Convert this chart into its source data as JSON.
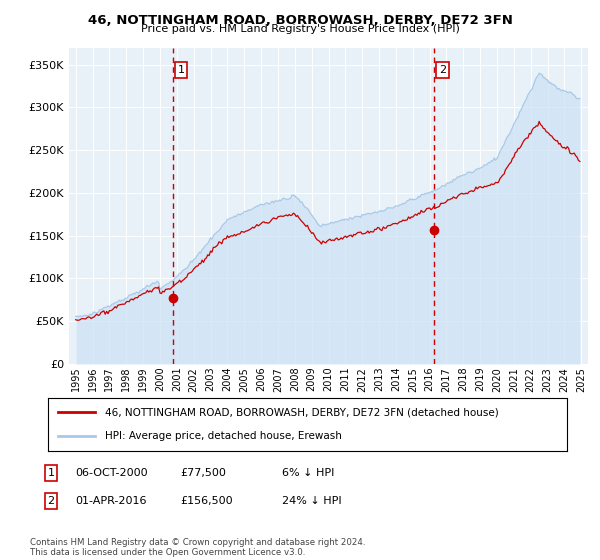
{
  "title": "46, NOTTINGHAM ROAD, BORROWASH, DERBY, DE72 3FN",
  "subtitle": "Price paid vs. HM Land Registry's House Price Index (HPI)",
  "ylim": [
    0,
    370000
  ],
  "yticks": [
    0,
    50000,
    100000,
    150000,
    200000,
    250000,
    300000,
    350000
  ],
  "hpi_color": "#a8c8e8",
  "hpi_fill_color": "#d0e4f5",
  "price_color": "#cc0000",
  "vline_color": "#cc0000",
  "sale1_price": 77500,
  "sale2_price": 156500,
  "legend_line1": "46, NOTTINGHAM ROAD, BORROWASH, DERBY, DE72 3FN (detached house)",
  "legend_line2": "HPI: Average price, detached house, Erewash",
  "sale1_date": "06-OCT-2000",
  "sale1_amount": "£77,500",
  "sale1_hpi": "6% ↓ HPI",
  "sale2_date": "01-APR-2016",
  "sale2_amount": "£156,500",
  "sale2_hpi": "24% ↓ HPI",
  "footnote": "Contains HM Land Registry data © Crown copyright and database right 2024.\nThis data is licensed under the Open Government Licence v3.0.",
  "background_color": "#e8f0f8"
}
